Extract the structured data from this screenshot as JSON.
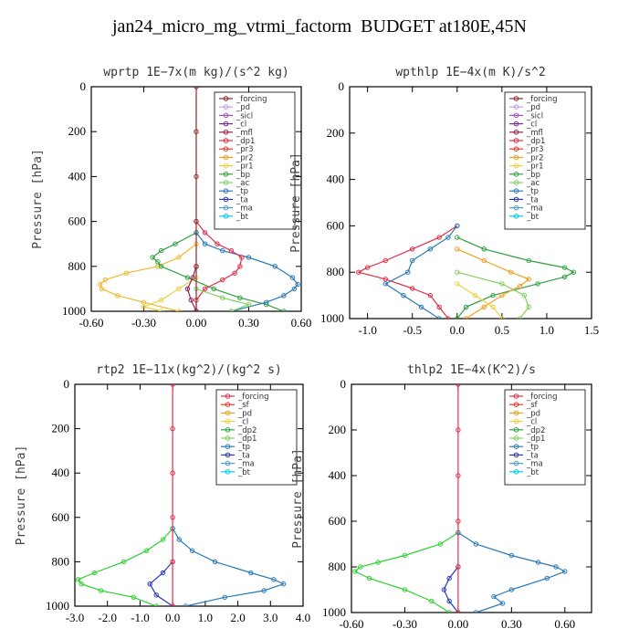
{
  "title": "jan24_micro_mg_vtrmi_factorm  BUDGET at180E,45N",
  "chart_data": [
    {
      "type": "line",
      "title": "wprtp  1E−7x(m kg)/(s^2 kg)",
      "ylabel": "Pressure [hPa]",
      "xlim": [
        -0.6,
        0.6
      ],
      "ylim": [
        1000,
        0
      ],
      "xticks": [
        -0.6,
        -0.3,
        0.0,
        0.3,
        0.6
      ],
      "xtick_labels": [
        "-0.60",
        "-0.30",
        "0.00",
        "0.30",
        "0.60"
      ],
      "yticks": [
        0,
        200,
        400,
        600,
        800,
        1000
      ],
      "legend_position": "top-right",
      "legend": [
        {
          "name": "_forcing",
          "color": "#8b2a2a"
        },
        {
          "name": "_pd",
          "color": "#c8a0d8"
        },
        {
          "name": "_sicl",
          "color": "#9a50c8"
        },
        {
          "name": "_cl",
          "color": "#7a2a9a"
        },
        {
          "name": "_mfl",
          "color": "#9a2050"
        },
        {
          "name": "_dp1",
          "color": "#e0304a"
        },
        {
          "name": "_pr3",
          "color": "#e83a2a"
        },
        {
          "name": "_pr2",
          "color": "#f0a020"
        },
        {
          "name": "_pr1",
          "color": "#f0d040"
        },
        {
          "name": "_bp",
          "color": "#30a040"
        },
        {
          "name": "_ac",
          "color": "#80d060"
        },
        {
          "name": "_tp",
          "color": "#2a7ab8"
        },
        {
          "name": "_ta",
          "color": "#2a3ab8"
        },
        {
          "name": "_ma",
          "color": "#4aa0d0"
        },
        {
          "name": "_bt",
          "color": "#00c8f0"
        }
      ],
      "series": [
        {
          "name": "_pr2",
          "color": "#f0b830",
          "y": [
            700,
            760,
            800,
            830,
            860,
            880,
            900,
            930,
            960,
            1000
          ],
          "x": [
            0.0,
            -0.1,
            -0.22,
            -0.4,
            -0.52,
            -0.55,
            -0.54,
            -0.45,
            -0.3,
            -0.1
          ]
        },
        {
          "name": "_bp",
          "color": "#30a040",
          "y": [
            650,
            700,
            730,
            760,
            780,
            800,
            850,
            900,
            940,
            970,
            1000
          ],
          "x": [
            0.0,
            -0.12,
            -0.2,
            -0.25,
            -0.22,
            -0.2,
            -0.05,
            0.1,
            0.25,
            0.4,
            0.5
          ]
        },
        {
          "name": "_tp",
          "color": "#2a7ab8",
          "y": [
            650,
            700,
            730,
            760,
            800,
            850,
            880,
            900,
            930,
            960,
            1000
          ],
          "x": [
            0.0,
            0.05,
            0.15,
            0.3,
            0.45,
            0.55,
            0.58,
            0.56,
            0.5,
            0.4,
            0.2
          ]
        },
        {
          "name": "_dp1",
          "color": "#e0304a",
          "y": [
            600,
            650,
            700,
            730,
            760,
            800,
            830,
            860,
            900,
            950,
            1000
          ],
          "x": [
            0.0,
            0.05,
            0.12,
            0.2,
            0.26,
            0.25,
            0.22,
            0.15,
            0.05,
            0.0,
            0.0
          ]
        },
        {
          "name": "_ac",
          "color": "#80d060",
          "y": [
            900,
            940,
            970,
            1000
          ],
          "x": [
            0.0,
            0.15,
            0.3,
            0.2
          ]
        },
        {
          "name": "_pr1",
          "color": "#e8d040",
          "y": [
            850,
            900,
            950,
            980,
            1000
          ],
          "x": [
            0.0,
            -0.1,
            -0.2,
            -0.3,
            -0.2
          ]
        },
        {
          "name": "_mfl",
          "color": "#9a2050",
          "y": [
            800,
            850,
            900,
            950,
            1000
          ],
          "x": [
            0.0,
            -0.02,
            -0.05,
            -0.03,
            0.0
          ]
        },
        {
          "name": "_forcing",
          "color": "#8b2a2a",
          "y": [
            0,
            200,
            400,
            600,
            800,
            1000
          ],
          "x": [
            0,
            0,
            0,
            0,
            0,
            0
          ]
        }
      ]
    },
    {
      "type": "line",
      "title": "wpthlp  1E−4x(m K)/s^2",
      "ylabel": "Pressure [hPa]",
      "xlim": [
        -1.2,
        1.5
      ],
      "ylim": [
        1000,
        0
      ],
      "xticks": [
        -1.0,
        -0.5,
        0.0,
        0.5,
        1.0,
        1.5
      ],
      "xtick_labels": [
        "-1.0",
        "-0.5",
        "0.0",
        "0.5",
        "1.0",
        "1.5"
      ],
      "yticks": [
        0,
        200,
        400,
        600,
        800,
        1000
      ],
      "legend_position": "top-right",
      "legend": [
        {
          "name": "_forcing",
          "color": "#8b2a2a"
        },
        {
          "name": "_pd",
          "color": "#c8a0d8"
        },
        {
          "name": "_sicl",
          "color": "#9a50c8"
        },
        {
          "name": "_cl",
          "color": "#7a2a9a"
        },
        {
          "name": "_mfl",
          "color": "#9a2050"
        },
        {
          "name": "_dp1",
          "color": "#e0304a"
        },
        {
          "name": "_pr3",
          "color": "#e83a2a"
        },
        {
          "name": "_pr2",
          "color": "#f0a020"
        },
        {
          "name": "_pr1",
          "color": "#f0d040"
        },
        {
          "name": "_bp",
          "color": "#30a040"
        },
        {
          "name": "_ac",
          "color": "#80d060"
        },
        {
          "name": "_tp",
          "color": "#2a7ab8"
        },
        {
          "name": "_ta",
          "color": "#2a3ab8"
        },
        {
          "name": "_ma",
          "color": "#4aa0d0"
        },
        {
          "name": "_bt",
          "color": "#00c8f0"
        }
      ],
      "series": [
        {
          "name": "_bp",
          "color": "#30a040",
          "y": [
            650,
            700,
            750,
            780,
            800,
            820,
            850,
            900,
            950,
            1000
          ],
          "x": [
            0.0,
            0.3,
            0.8,
            1.2,
            1.3,
            1.2,
            0.9,
            0.4,
            0.1,
            0.0
          ]
        },
        {
          "name": "_dp1",
          "color": "#e0304a",
          "y": [
            600,
            650,
            700,
            750,
            780,
            800,
            830,
            870,
            900,
            950,
            1000
          ],
          "x": [
            0.0,
            -0.2,
            -0.5,
            -0.8,
            -1.0,
            -1.1,
            -0.8,
            -0.5,
            -0.3,
            -0.2,
            -0.1
          ]
        },
        {
          "name": "_tp",
          "color": "#2a7ab8",
          "y": [
            600,
            650,
            700,
            750,
            800,
            850,
            900,
            950,
            1000
          ],
          "x": [
            0.0,
            -0.1,
            -0.3,
            -0.5,
            -0.55,
            -0.8,
            -0.6,
            -0.4,
            -0.2
          ]
        },
        {
          "name": "_pr2",
          "color": "#f0a020",
          "y": [
            700,
            750,
            800,
            830,
            860,
            900,
            950,
            1000
          ],
          "x": [
            0.0,
            0.3,
            0.6,
            0.8,
            0.7,
            0.5,
            0.3,
            0.1
          ]
        },
        {
          "name": "_ac",
          "color": "#80d060",
          "y": [
            800,
            850,
            900,
            950,
            1000
          ],
          "x": [
            0.0,
            0.5,
            0.75,
            0.8,
            0.7
          ]
        },
        {
          "name": "_pr1",
          "color": "#f0d040",
          "y": [
            850,
            900,
            950,
            1000
          ],
          "x": [
            0.0,
            0.2,
            0.4,
            0.5
          ]
        }
      ]
    },
    {
      "type": "line",
      "title": "rtp2  1E−11x(kg^2)/(kg^2 s)",
      "ylabel": "Pressure [hPa]",
      "xlim": [
        -3.0,
        4.0
      ],
      "ylim": [
        1000,
        0
      ],
      "xticks": [
        -3,
        -2,
        -1,
        0,
        1,
        2,
        3,
        4
      ],
      "xtick_labels": [
        "-3.0",
        "-2.0",
        "-1.0",
        "0.0",
        "1.0",
        "2.0",
        "3.0",
        "4.0"
      ],
      "yticks": [
        0,
        200,
        400,
        600,
        800,
        1000
      ],
      "legend_position": "top-right",
      "legend": [
        {
          "name": "_forcing",
          "color": "#e0304a"
        },
        {
          "name": "_sf",
          "color": "#e83a2a"
        },
        {
          "name": "_pd",
          "color": "#f0a020"
        },
        {
          "name": "_cl",
          "color": "#f0d040"
        },
        {
          "name": "_dp2",
          "color": "#30a040"
        },
        {
          "name": "_dp1",
          "color": "#80d060"
        },
        {
          "name": "_tp",
          "color": "#2a7ab8"
        },
        {
          "name": "_ta",
          "color": "#2a3ab8"
        },
        {
          "name": "_ma",
          "color": "#4aa0d0"
        },
        {
          "name": "_bt",
          "color": "#00c8f0"
        }
      ],
      "series": [
        {
          "name": "_dp2",
          "color": "#30d030",
          "y": [
            650,
            700,
            750,
            800,
            850,
            880,
            900,
            930,
            960,
            1000
          ],
          "x": [
            0.0,
            -0.3,
            -0.8,
            -1.5,
            -2.4,
            -2.9,
            -2.8,
            -2.2,
            -1.2,
            -0.5
          ]
        },
        {
          "name": "_tp",
          "color": "#2a7ab8",
          "y": [
            650,
            700,
            750,
            800,
            850,
            880,
            900,
            930,
            960,
            1000
          ],
          "x": [
            0.0,
            0.2,
            0.6,
            1.3,
            2.4,
            3.1,
            3.4,
            2.8,
            1.6,
            0.4
          ]
        },
        {
          "name": "_ta",
          "color": "#2a3ab8",
          "y": [
            800,
            850,
            900,
            950,
            1000
          ],
          "x": [
            0.0,
            -0.3,
            -0.7,
            -0.5,
            0.0
          ]
        },
        {
          "name": "_forcing",
          "color": "#e0304a",
          "y": [
            0,
            200,
            400,
            600,
            800,
            1000
          ],
          "x": [
            0,
            0,
            0,
            0,
            0,
            0
          ]
        }
      ]
    },
    {
      "type": "line",
      "title": "thlp2  1E−4x(K^2)/s",
      "ylabel": "Pressure [hPa]",
      "xlim": [
        -0.6,
        0.75
      ],
      "ylim": [
        1000,
        0
      ],
      "xticks": [
        -0.6,
        -0.3,
        0.0,
        0.3,
        0.6
      ],
      "xtick_labels": [
        "-0.60",
        "-0.30",
        "0.00",
        "0.30",
        "0.60"
      ],
      "yticks": [
        0,
        200,
        400,
        600,
        800,
        1000
      ],
      "legend_position": "top-right",
      "legend": [
        {
          "name": "_forcing",
          "color": "#e0304a"
        },
        {
          "name": "_sf",
          "color": "#e83a2a"
        },
        {
          "name": "_pd",
          "color": "#f0a020"
        },
        {
          "name": "_cl",
          "color": "#f0d040"
        },
        {
          "name": "_dp2",
          "color": "#30a040"
        },
        {
          "name": "_dp1",
          "color": "#80d060"
        },
        {
          "name": "_tp",
          "color": "#2a7ab8"
        },
        {
          "name": "_ta",
          "color": "#2a3ab8"
        },
        {
          "name": "_ma",
          "color": "#4aa0d0"
        },
        {
          "name": "_bt",
          "color": "#00c8f0"
        }
      ],
      "series": [
        {
          "name": "_dp2",
          "color": "#30d030",
          "y": [
            650,
            700,
            750,
            780,
            800,
            820,
            850,
            900,
            950,
            1000
          ],
          "x": [
            0.0,
            -0.1,
            -0.3,
            -0.45,
            -0.55,
            -0.58,
            -0.5,
            -0.3,
            -0.15,
            -0.05
          ]
        },
        {
          "name": "_tp",
          "color": "#2a7ab8",
          "y": [
            650,
            700,
            750,
            780,
            800,
            820,
            850,
            900,
            930,
            960,
            1000
          ],
          "x": [
            0.0,
            0.1,
            0.3,
            0.45,
            0.55,
            0.6,
            0.5,
            0.3,
            0.2,
            0.25,
            0.1
          ]
        },
        {
          "name": "_ta",
          "color": "#2a3ab8",
          "y": [
            800,
            850,
            900,
            950,
            1000
          ],
          "x": [
            0.0,
            -0.05,
            -0.08,
            -0.05,
            0.0
          ]
        },
        {
          "name": "_forcing",
          "color": "#e0304a",
          "y": [
            0,
            200,
            400,
            600,
            800,
            1000
          ],
          "x": [
            0,
            0,
            0,
            0,
            0,
            0
          ]
        }
      ]
    }
  ]
}
